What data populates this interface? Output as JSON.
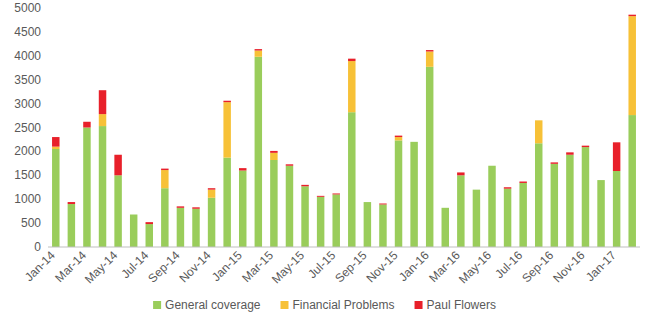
{
  "chart_data": {
    "type": "bar",
    "stacked": true,
    "grid": false,
    "legend": "bottom",
    "categories": [
      "Jan-14",
      null,
      "Mar-14",
      null,
      "May-14",
      null,
      "Jul-14",
      null,
      "Sep-14",
      null,
      "Nov-14",
      null,
      "Jan-15",
      null,
      "Mar-15",
      null,
      "May-15",
      null,
      "Jul-15",
      null,
      "Sep-15",
      null,
      "Nov-15",
      null,
      "Jan-16",
      null,
      "Mar-16",
      null,
      "May-16",
      null,
      "Jul-16",
      null,
      "Sep-16",
      null,
      "Nov-16",
      null,
      "Jan-17",
      null
    ],
    "series": [
      {
        "name": "General coverage",
        "color": "#9acd5b",
        "values": [
          2050,
          900,
          2500,
          2530,
          1500,
          680,
          480,
          1230,
          820,
          800,
          1030,
          1870,
          1600,
          3980,
          1820,
          1700,
          1270,
          1050,
          1100,
          2820,
          940,
          890,
          2230,
          2200,
          3770,
          820,
          1500,
          1200,
          1700,
          1220,
          1340,
          2170,
          1740,
          1930,
          2090,
          1400,
          1590,
          2760
        ]
      },
      {
        "name": "Financial Problems",
        "color": "#f7c137",
        "values": [
          50,
          0,
          0,
          250,
          0,
          0,
          0,
          380,
          0,
          0,
          170,
          1160,
          0,
          130,
          150,
          0,
          0,
          0,
          0,
          1070,
          0,
          0,
          70,
          0,
          320,
          0,
          0,
          0,
          0,
          0,
          0,
          480,
          0,
          0,
          0,
          0,
          0,
          2070
        ]
      },
      {
        "name": "Paul Flowers",
        "color": "#e8202a",
        "values": [
          200,
          40,
          120,
          500,
          430,
          0,
          40,
          30,
          30,
          30,
          30,
          30,
          50,
          30,
          40,
          30,
          30,
          20,
          20,
          50,
          0,
          20,
          30,
          0,
          30,
          0,
          60,
          0,
          0,
          30,
          30,
          0,
          30,
          50,
          30,
          0,
          600,
          30
        ]
      }
    ],
    "ylim": [
      0,
      5000
    ],
    "yticks": [
      0,
      500,
      1000,
      1500,
      2000,
      2500,
      3000,
      3500,
      4000,
      4500,
      5000
    ]
  }
}
